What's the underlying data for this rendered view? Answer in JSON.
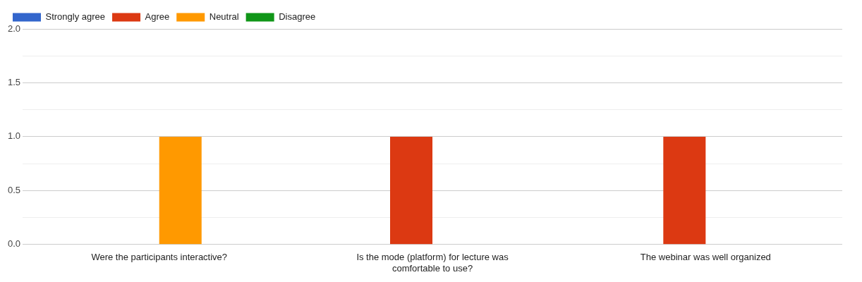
{
  "chart_data": {
    "type": "bar",
    "categories": [
      "Were the participants interactive?",
      "Is the mode (platform) for lecture was comfortable to use?",
      "The webinar was well organized"
    ],
    "series": [
      {
        "name": "Strongly agree",
        "color": "#3366cc",
        "values": [
          0,
          0,
          0
        ]
      },
      {
        "name": "Agree",
        "color": "#dc3912",
        "values": [
          0,
          1,
          1
        ]
      },
      {
        "name": "Neutral",
        "color": "#ff9900",
        "values": [
          1,
          0,
          0
        ]
      },
      {
        "name": "Disagree",
        "color": "#109618",
        "values": [
          0,
          0,
          0
        ]
      }
    ],
    "ylim": [
      0,
      2
    ],
    "yticks": [
      {
        "value": 0,
        "label": "0.0"
      },
      {
        "value": 0.25,
        "label": null
      },
      {
        "value": 0.5,
        "label": "0.5"
      },
      {
        "value": 0.75,
        "label": null
      },
      {
        "value": 1,
        "label": "1.0"
      },
      {
        "value": 1.25,
        "label": null
      },
      {
        "value": 1.5,
        "label": "1.5"
      },
      {
        "value": 1.75,
        "label": null
      },
      {
        "value": 2,
        "label": "2.0"
      }
    ],
    "grid": "y",
    "legend": "top left"
  }
}
